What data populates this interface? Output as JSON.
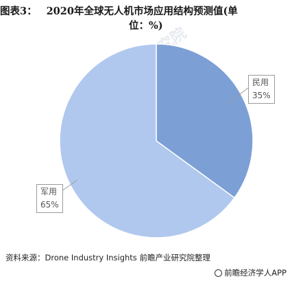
{
  "title": {
    "figure_no": "图表3：",
    "text_line1": "2020年全球无人机市场应用结构预测值(单",
    "text_line2": "位：%)"
  },
  "chart_data": {
    "type": "pie",
    "title": "2020年全球无人机市场应用结构预测值(单位：%)",
    "slices": [
      {
        "label": "民用",
        "value": 35,
        "value_label": "35%",
        "color": "#7c9fd6"
      },
      {
        "label": "军用",
        "value": 65,
        "value_label": "65%",
        "color": "#b0c8ee"
      }
    ],
    "start_angle_deg": 0,
    "direction": "clockwise"
  },
  "source": "资料来源：Drone Industry Insights 前瞻产业研究院整理",
  "brand": {
    "text": "前瞻经济学人APP",
    "icon": "qianzhan-logo-icon"
  },
  "watermark": "前瞻产业研究院"
}
